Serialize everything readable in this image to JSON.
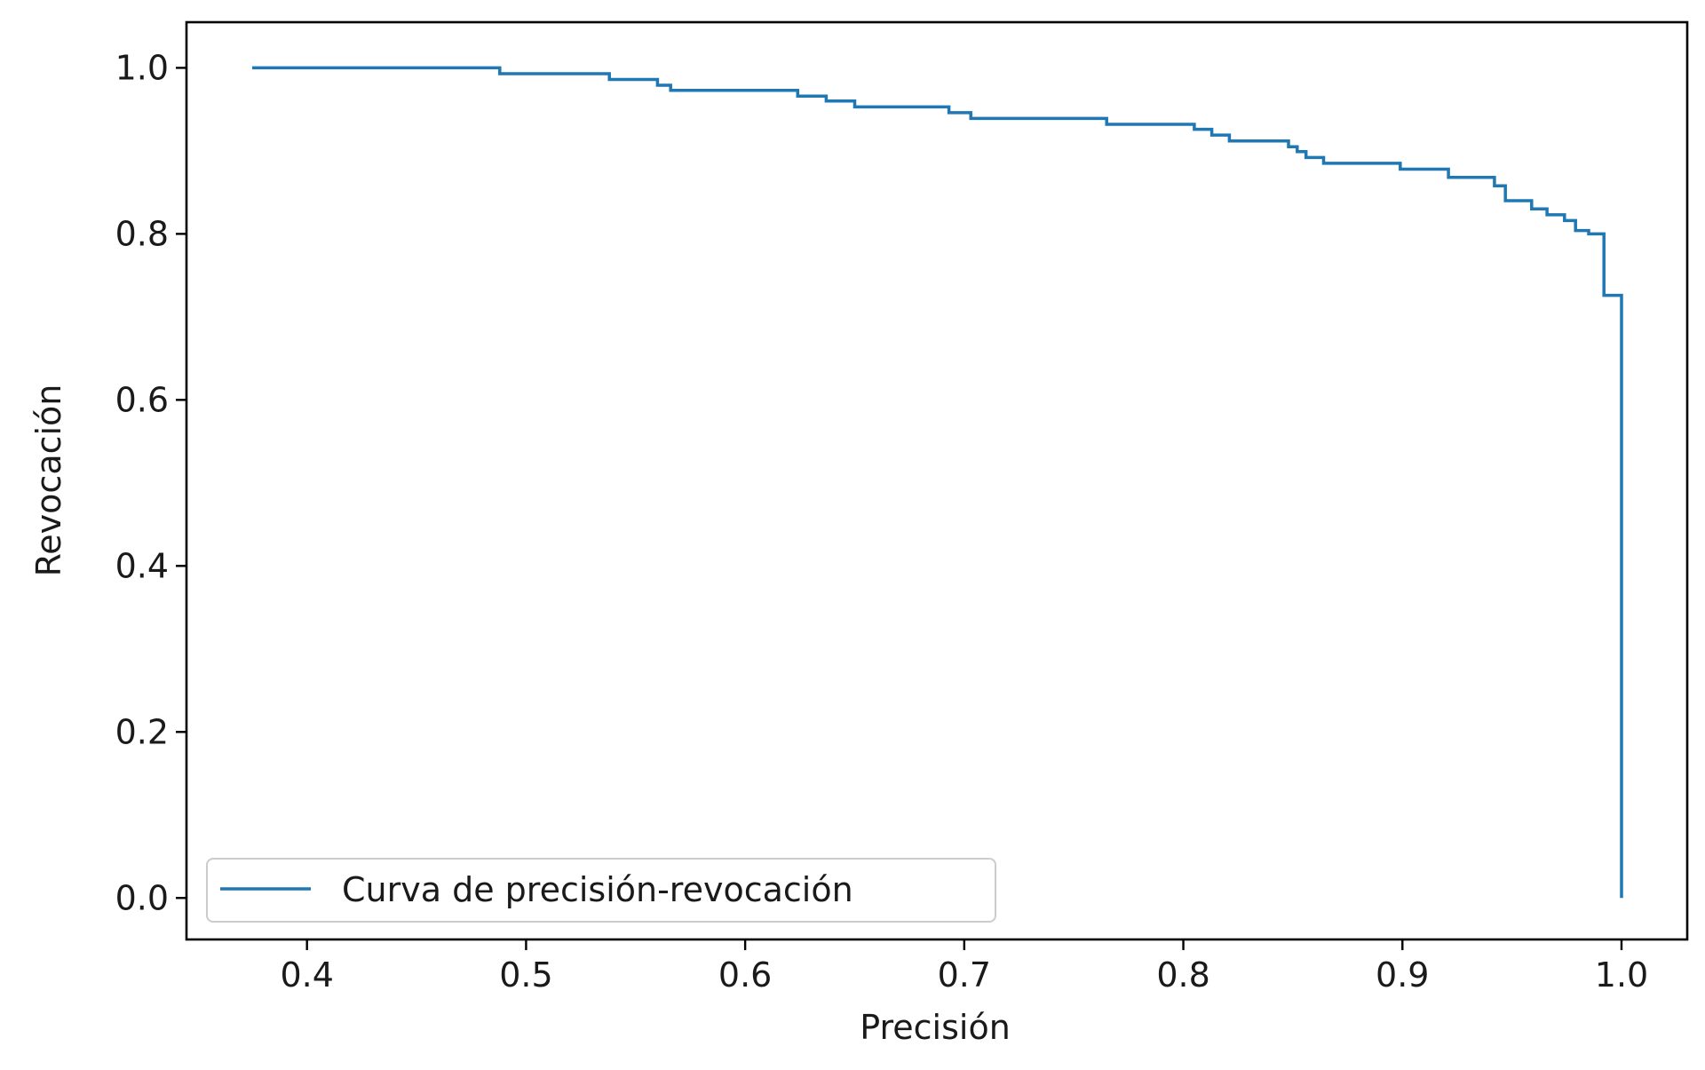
{
  "chart_data": {
    "type": "line",
    "title": "",
    "xlabel": "Precisión",
    "ylabel": "Revocación",
    "xlim": [
      0.345,
      1.03
    ],
    "ylim": [
      -0.05,
      1.055
    ],
    "xticks": [
      0.4,
      0.5,
      0.6,
      0.7,
      0.8,
      0.9,
      1.0
    ],
    "xtick_labels": [
      "0.4",
      "0.5",
      "0.6",
      "0.7",
      "0.8",
      "0.9",
      "1.0"
    ],
    "yticks": [
      0.0,
      0.2,
      0.4,
      0.6,
      0.8,
      1.0
    ],
    "ytick_labels": [
      "0.0",
      "0.2",
      "0.4",
      "0.6",
      "0.8",
      "1.0"
    ],
    "grid": false,
    "legend": {
      "position": "lower-left"
    },
    "series": [
      {
        "name": "Curva de precisión-revocación",
        "color": "#1f77b4",
        "drawstyle": "steps",
        "points": [
          [
            0.375,
            1.0
          ],
          [
            0.488,
            1.0
          ],
          [
            0.488,
            0.993
          ],
          [
            0.538,
            0.993
          ],
          [
            0.538,
            0.986
          ],
          [
            0.56,
            0.986
          ],
          [
            0.56,
            0.979
          ],
          [
            0.566,
            0.979
          ],
          [
            0.566,
            0.973
          ],
          [
            0.624,
            0.973
          ],
          [
            0.624,
            0.966
          ],
          [
            0.637,
            0.966
          ],
          [
            0.637,
            0.96
          ],
          [
            0.65,
            0.96
          ],
          [
            0.65,
            0.953
          ],
          [
            0.693,
            0.953
          ],
          [
            0.693,
            0.946
          ],
          [
            0.703,
            0.946
          ],
          [
            0.703,
            0.939
          ],
          [
            0.765,
            0.939
          ],
          [
            0.765,
            0.932
          ],
          [
            0.805,
            0.932
          ],
          [
            0.805,
            0.926
          ],
          [
            0.813,
            0.926
          ],
          [
            0.813,
            0.919
          ],
          [
            0.821,
            0.919
          ],
          [
            0.821,
            0.912
          ],
          [
            0.848,
            0.912
          ],
          [
            0.848,
            0.905
          ],
          [
            0.852,
            0.905
          ],
          [
            0.852,
            0.899
          ],
          [
            0.856,
            0.899
          ],
          [
            0.856,
            0.892
          ],
          [
            0.864,
            0.892
          ],
          [
            0.864,
            0.885
          ],
          [
            0.899,
            0.885
          ],
          [
            0.899,
            0.878
          ],
          [
            0.921,
            0.878
          ],
          [
            0.921,
            0.868
          ],
          [
            0.942,
            0.868
          ],
          [
            0.942,
            0.858
          ],
          [
            0.947,
            0.858
          ],
          [
            0.947,
            0.84
          ],
          [
            0.959,
            0.84
          ],
          [
            0.959,
            0.83
          ],
          [
            0.966,
            0.83
          ],
          [
            0.966,
            0.823
          ],
          [
            0.974,
            0.823
          ],
          [
            0.974,
            0.816
          ],
          [
            0.979,
            0.816
          ],
          [
            0.979,
            0.804
          ],
          [
            0.985,
            0.804
          ],
          [
            0.985,
            0.8
          ],
          [
            0.992,
            0.8
          ],
          [
            0.992,
            0.726
          ],
          [
            1.0,
            0.726
          ],
          [
            1.0,
            0.0
          ]
        ]
      }
    ]
  }
}
